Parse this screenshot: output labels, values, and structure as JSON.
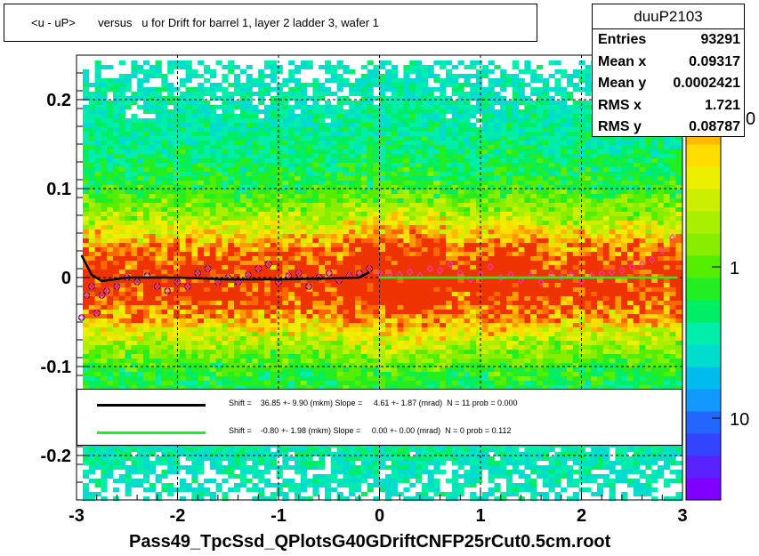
{
  "title": "<u - uP>       versus   u for Drift for barrel 1, layer 2 ladder 3, wafer 1",
  "stats": {
    "name": "duuP2103",
    "rows": [
      {
        "label": "Entries",
        "value": "93291"
      },
      {
        "label": "Mean x",
        "value": "0.09317"
      },
      {
        "label": "Mean y",
        "value": "0.0002421"
      },
      {
        "label": "RMS x",
        "value": "1.721"
      },
      {
        "label": "RMS y",
        "value": "0.08787"
      }
    ]
  },
  "legend": [
    {
      "color": "#000000",
      "text": "Shift =    36.85 +- 9.90 (mkm) Slope =     4.61 +- 1.87 (mrad)  N = 11 prob = 0.000"
    },
    {
      "color": "#22ee22",
      "text": "Shift =    -0.80 +- 1.98 (mkm) Slope =     0.00 +- 0.00 (mrad)  N = 0 prob = 0.112"
    }
  ],
  "x_axis_title": "Pass49_TpcSsd_QPlotsG40GDriftCNFP25rCut0.5cm.root",
  "chart_data": {
    "type": "heatmap",
    "xlim": [
      -3,
      3
    ],
    "ylim": [
      -0.25,
      0.25
    ],
    "x_ticks": [
      "-3",
      "-2",
      "-1",
      "0",
      "1",
      "2",
      "3"
    ],
    "y_ticks": [
      "-0.2",
      "-0.1",
      "0",
      "0.1",
      "0.2"
    ],
    "z_scale": "log",
    "z_ticks": [
      "1",
      "10"
    ],
    "z_top_label_partial": "0",
    "grid": true,
    "profile_points": [
      {
        "x": -2.95,
        "y": -0.045
      },
      {
        "x": -2.9,
        "y": -0.02
      },
      {
        "x": -2.85,
        "y": -0.01
      },
      {
        "x": -2.8,
        "y": -0.04
      },
      {
        "x": -2.75,
        "y": -0.02
      },
      {
        "x": -2.7,
        "y": -0.015
      },
      {
        "x": -2.6,
        "y": -0.01
      },
      {
        "x": -2.5,
        "y": 0.0
      },
      {
        "x": -2.4,
        "y": -0.005
      },
      {
        "x": -2.3,
        "y": 0.002
      },
      {
        "x": -2.2,
        "y": -0.01
      },
      {
        "x": -2.1,
        "y": -0.015
      },
      {
        "x": -2.0,
        "y": -0.005
      },
      {
        "x": -1.9,
        "y": -0.01
      },
      {
        "x": -1.8,
        "y": 0.005
      },
      {
        "x": -1.7,
        "y": 0.01
      },
      {
        "x": -1.6,
        "y": -0.005
      },
      {
        "x": -1.5,
        "y": 0.0
      },
      {
        "x": -1.4,
        "y": -0.005
      },
      {
        "x": -1.3,
        "y": 0.003
      },
      {
        "x": -1.2,
        "y": 0.01
      },
      {
        "x": -1.1,
        "y": 0.015
      },
      {
        "x": -1.0,
        "y": -0.005
      },
      {
        "x": -0.9,
        "y": 0.002
      },
      {
        "x": -0.8,
        "y": 0.005
      },
      {
        "x": -0.7,
        "y": -0.01
      },
      {
        "x": -0.6,
        "y": 0.0
      },
      {
        "x": -0.5,
        "y": 0.005
      },
      {
        "x": -0.4,
        "y": -0.003
      },
      {
        "x": -0.3,
        "y": 0.002
      },
      {
        "x": -0.2,
        "y": 0.005
      },
      {
        "x": -0.1,
        "y": 0.01
      },
      {
        "x": 0.0,
        "y": 0.005
      },
      {
        "x": 0.1,
        "y": 0.004
      },
      {
        "x": 0.2,
        "y": 0.003
      },
      {
        "x": 0.3,
        "y": 0.006
      },
      {
        "x": 0.4,
        "y": 0.002
      },
      {
        "x": 0.5,
        "y": 0.01
      },
      {
        "x": 0.6,
        "y": 0.008
      },
      {
        "x": 0.7,
        "y": 0.015
      },
      {
        "x": 0.8,
        "y": 0.005
      },
      {
        "x": 0.9,
        "y": -0.002
      },
      {
        "x": 1.0,
        "y": 0.004
      },
      {
        "x": 1.1,
        "y": 0.012
      },
      {
        "x": 1.2,
        "y": 0.0
      },
      {
        "x": 1.3,
        "y": 0.003
      },
      {
        "x": 1.4,
        "y": -0.003
      },
      {
        "x": 1.5,
        "y": 0.002
      },
      {
        "x": 1.6,
        "y": -0.005
      },
      {
        "x": 1.7,
        "y": 0.004
      },
      {
        "x": 1.8,
        "y": 0.0
      },
      {
        "x": 1.9,
        "y": 0.003
      },
      {
        "x": 2.0,
        "y": -0.004
      },
      {
        "x": 2.1,
        "y": 0.002
      },
      {
        "x": 2.2,
        "y": 0.004
      },
      {
        "x": 2.3,
        "y": 0.006
      },
      {
        "x": 2.4,
        "y": 0.008
      },
      {
        "x": 2.5,
        "y": 0.012
      },
      {
        "x": 2.6,
        "y": 0.015
      },
      {
        "x": 2.7,
        "y": 0.02
      },
      {
        "x": 2.8,
        "y": 0.03
      },
      {
        "x": 2.9,
        "y": 0.045
      }
    ],
    "fit_black": {
      "x_range": [
        -2.95,
        -0.1
      ],
      "points": [
        {
          "x": -2.95,
          "y": 0.025
        },
        {
          "x": -2.85,
          "y": 0.003
        },
        {
          "x": -2.75,
          "y": -0.004
        },
        {
          "x": -2.5,
          "y": 0.0
        },
        {
          "x": -2.0,
          "y": 0.0
        },
        {
          "x": -1.5,
          "y": -0.002
        },
        {
          "x": -1.0,
          "y": -0.002
        },
        {
          "x": -0.5,
          "y": -0.001
        },
        {
          "x": -0.2,
          "y": 0.0
        },
        {
          "x": -0.1,
          "y": 0.006
        }
      ]
    },
    "fit_green": {
      "x_range": [
        0.0,
        2.95
      ],
      "y": 0.0
    }
  }
}
